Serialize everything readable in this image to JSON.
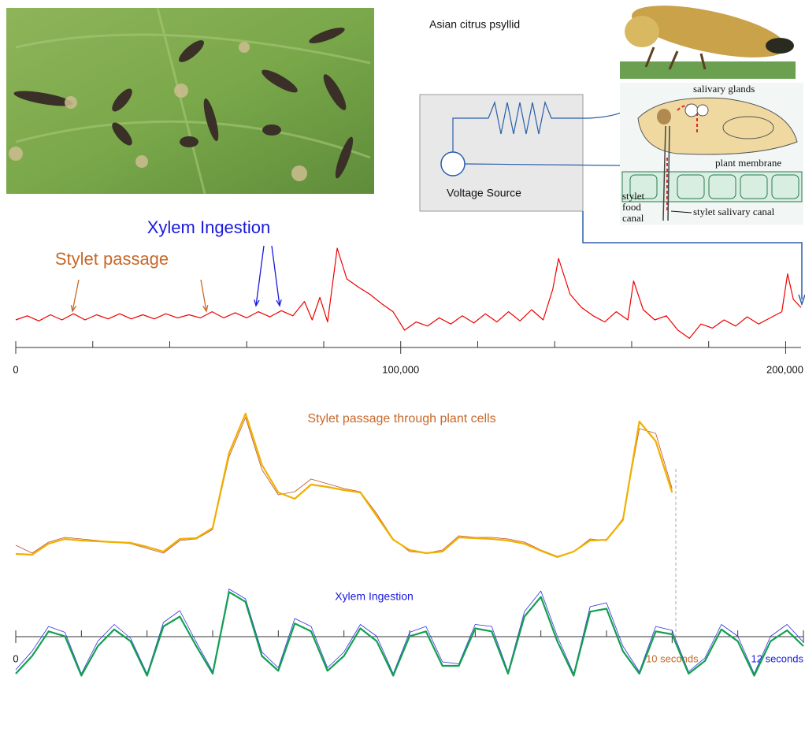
{
  "header": {
    "caption": "Asian citrus psyllid"
  },
  "diagram": {
    "voltage_label": "Voltage Source",
    "labels": [
      "salivary glands",
      "plant membrane",
      "stylet",
      "food",
      "canal",
      "stylet salivary canal"
    ]
  },
  "chart_data": [
    {
      "type": "line",
      "annotations": [
        {
          "text": "Xylem Ingestion",
          "color": "#1a1adc"
        },
        {
          "text": "Stylet passage",
          "color": "#c8682a"
        }
      ],
      "x": [
        0,
        3000,
        6000,
        9000,
        12000,
        15000,
        18000,
        21000,
        24000,
        27000,
        30000,
        33000,
        36000,
        39000,
        42000,
        45000,
        48000,
        51000,
        54000,
        57000,
        60000,
        63000,
        66000,
        69000,
        72000,
        75000,
        77000,
        79000,
        81000,
        83500,
        86000,
        89000,
        92000,
        95000,
        98000,
        101000,
        104000,
        107000,
        110000,
        113000,
        116000,
        119000,
        122000,
        125000,
        128000,
        131000,
        134000,
        137000,
        139500,
        141000,
        144000,
        147000,
        150000,
        153000,
        156000,
        159000,
        160500,
        163000,
        166000,
        169000,
        172000,
        175000,
        178000,
        181000,
        184000,
        187000,
        190000,
        193000,
        196000,
        199000,
        200500,
        202000,
        204000
      ],
      "series": [
        {
          "color": "#ee0000",
          "values": [
            30,
            34,
            29,
            35,
            30,
            36,
            30,
            35,
            31,
            36,
            31,
            35,
            31,
            36,
            32,
            35,
            32,
            38,
            32,
            37,
            32,
            38,
            33,
            39,
            34,
            48,
            30,
            52,
            28,
            100,
            70,
            62,
            55,
            46,
            38,
            20,
            28,
            24,
            32,
            26,
            34,
            27,
            36,
            28,
            38,
            29,
            40,
            30,
            60,
            90,
            55,
            42,
            34,
            28,
            38,
            30,
            68,
            40,
            30,
            34,
            20,
            12,
            26,
            22,
            30,
            24,
            33,
            26,
            32,
            38,
            75,
            50,
            42
          ]
        }
      ],
      "xlim": [
        0,
        204000
      ],
      "ylim": [
        0,
        100
      ],
      "xticks": [
        0,
        {
          "value": 100000,
          "label": "100,000"
        },
        {
          "value": 200000,
          "label": "200,000"
        }
      ],
      "xminorticks": [
        20000,
        40000,
        60000,
        80000,
        120000,
        140000,
        160000,
        180000
      ]
    },
    {
      "type": "line",
      "title": "Stylet passage through plant cells",
      "title_color": "#c8682a",
      "x": [
        0,
        0.25,
        0.5,
        0.75,
        1,
        1.25,
        1.5,
        1.75,
        2,
        2.25,
        2.5,
        2.75,
        3,
        3.25,
        3.5,
        3.75,
        4,
        4.25,
        4.5,
        4.75,
        5,
        5.25,
        5.5,
        5.75,
        6,
        6.25,
        6.5,
        6.75,
        7,
        7.25,
        7.5,
        7.75,
        8,
        8.25,
        8.5,
        8.75,
        9,
        9.25,
        9.5,
        9.75,
        10
      ],
      "series": [
        {
          "color": "#c0502a",
          "values": [
            14,
            9,
            16,
            19,
            18,
            17,
            16,
            15,
            12,
            9,
            17,
            18,
            24,
            70,
            95,
            62,
            46,
            48,
            56,
            53,
            50,
            48,
            34,
            18,
            10,
            9,
            11,
            20,
            19,
            19,
            18,
            16,
            11,
            7,
            10,
            18,
            17,
            31,
            88,
            85,
            50
          ]
        },
        {
          "color": "#f0b000",
          "values": [
            8.5,
            8,
            15,
            18,
            17,
            16.5,
            16,
            15.5,
            13,
            10,
            18,
            18.5,
            25,
            72.5,
            97.5,
            65,
            47.5,
            43.5,
            52.5,
            51,
            49,
            47.5,
            32.5,
            17.5,
            11,
            9,
            10,
            19,
            18.5,
            18,
            17,
            15,
            10.5,
            6.5,
            10,
            17,
            17.5,
            30,
            92.5,
            80,
            47.5
          ]
        }
      ],
      "xlim": [
        0,
        12
      ],
      "ylim": [
        0,
        105
      ]
    },
    {
      "type": "line",
      "title": "Xylem Ingestion",
      "title_color": "#1a1adc",
      "x": [
        0,
        0.25,
        0.5,
        0.75,
        1,
        1.25,
        1.5,
        1.75,
        2,
        2.25,
        2.5,
        2.75,
        3,
        3.25,
        3.5,
        3.75,
        4,
        4.25,
        4.5,
        4.75,
        5,
        5.25,
        5.5,
        5.75,
        6,
        6.25,
        6.5,
        6.75,
        7,
        7.25,
        7.5,
        7.75,
        8,
        8.25,
        8.5,
        8.75,
        9,
        9.25,
        9.5,
        9.75,
        10,
        10.25,
        10.5,
        10.75,
        11,
        11.25,
        11.5,
        11.75,
        12
      ],
      "series": [
        {
          "color": "#3030e0",
          "values": [
            16,
            35,
            60,
            54,
            12,
            45,
            62,
            48,
            12,
            64,
            76,
            44,
            14,
            98,
            88,
            34,
            18,
            68,
            60,
            18,
            34,
            62,
            50,
            12,
            54,
            60,
            24,
            22,
            62,
            60,
            14,
            75,
            96,
            50,
            12,
            80,
            84,
            40,
            14,
            60,
            56,
            14,
            28,
            62,
            50,
            12,
            50,
            62,
            44
          ]
        },
        {
          "color": "#12a050",
          "values": [
            12,
            30,
            55,
            50,
            10,
            40,
            57,
            45,
            10,
            60,
            70,
            40,
            12,
            95,
            85,
            30,
            15,
            63,
            55,
            15,
            30,
            58,
            45,
            10,
            50,
            55,
            20,
            20,
            58,
            55,
            12,
            70,
            90,
            45,
            10,
            75,
            78,
            35,
            12,
            55,
            52,
            12,
            25,
            57,
            45,
            10,
            45,
            56,
            40
          ]
        }
      ],
      "xlim": [
        0,
        12
      ],
      "ylim": [
        0,
        100
      ],
      "xticks": [
        0,
        {
          "value": 10,
          "label": "10 seconds",
          "color": "#c8682a"
        },
        {
          "value": 12,
          "label": "12 seconds",
          "color": "#1a1adc"
        }
      ],
      "xminorticks": [
        1,
        2,
        3,
        4,
        5,
        6,
        7,
        8,
        9,
        11
      ]
    }
  ]
}
